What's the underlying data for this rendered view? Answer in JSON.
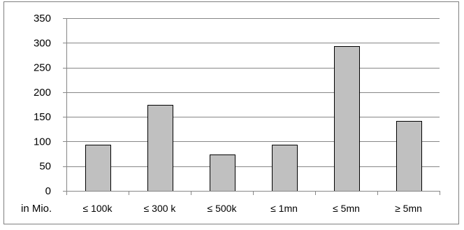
{
  "chart_data": {
    "type": "bar",
    "categories": [
      "≤ 100k",
      "≤ 300 k",
      "≤ 500k",
      "≤ 1mn",
      "≤  5mn",
      "≥ 5mn"
    ],
    "values": [
      94,
      174,
      74,
      93,
      294,
      142
    ],
    "unit_label": "in Mio.",
    "ylim": [
      0,
      350
    ],
    "yticks": [
      0,
      50,
      100,
      150,
      200,
      250,
      300,
      350
    ],
    "grid": true,
    "legend": "none",
    "bar_color": "#c0c0c0",
    "bar_outline": "#000000",
    "grid_color": "#868686"
  }
}
